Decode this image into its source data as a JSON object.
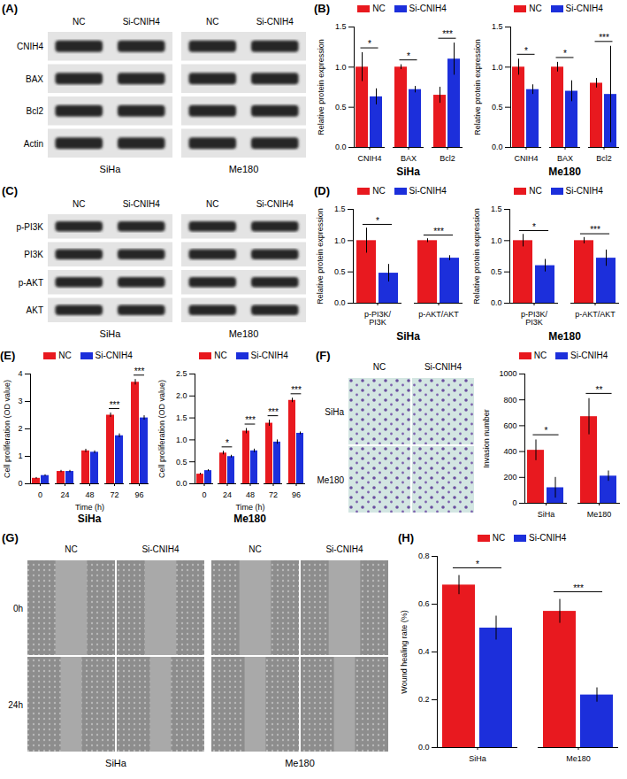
{
  "chart_data": [
    {
      "panel": "(B)",
      "type": "bar",
      "title": "SiHa",
      "ylabel": "Relative protein expression",
      "categories": [
        "CNIH4",
        "BAX",
        "Bcl2"
      ],
      "series": [
        {
          "name": "NC",
          "color": "#e8191f",
          "values": [
            1.0,
            1.0,
            0.65
          ],
          "errors": [
            0.18,
            0.03,
            0.1
          ]
        },
        {
          "name": "Si-CNIH4",
          "color": "#1c2fdb",
          "values": [
            0.63,
            0.72,
            1.1
          ],
          "errors": [
            0.1,
            0.04,
            0.2
          ]
        }
      ],
      "annotations": [
        "*",
        "*",
        "***"
      ],
      "ylim": [
        0,
        1.5
      ],
      "yticks": [
        {
          "value": 0,
          "label": "0.0"
        },
        {
          "value": 0.5,
          "label": "0.5"
        },
        {
          "value": 1,
          "label": "1.0"
        },
        {
          "value": 1.5,
          "label": "1.5"
        }
      ],
      "legend": "top"
    },
    {
      "type": "bar",
      "title": "Me180",
      "ylabel": "Relative protein expression",
      "categories": [
        "CNIH4",
        "BAX",
        "Bcl2"
      ],
      "series": [
        {
          "name": "NC",
          "color": "#e8191f",
          "values": [
            1.0,
            1.0,
            0.8
          ],
          "errors": [
            0.1,
            0.06,
            0.06
          ]
        },
        {
          "name": "Si-CNIH4",
          "color": "#1c2fdb",
          "values": [
            0.72,
            0.7,
            0.66
          ],
          "errors": [
            0.06,
            0.13,
            0.6
          ]
        }
      ],
      "annotations": [
        "*",
        "*",
        "***"
      ],
      "ylim": [
        0,
        1.5
      ],
      "yticks": [
        {
          "value": 0,
          "label": "0.0"
        },
        {
          "value": 0.5,
          "label": "0.5"
        },
        {
          "value": 1,
          "label": "1.0"
        },
        {
          "value": 1.5,
          "label": "1.5"
        }
      ],
      "legend": "top"
    },
    {
      "panel": "(D)",
      "type": "bar",
      "title": "SiHa",
      "ylabel": "Relative protein expression",
      "categories": [
        "p-PI3K/PI3K",
        "p-AKT/AKT"
      ],
      "series": [
        {
          "name": "NC",
          "color": "#e8191f",
          "values": [
            1.0,
            1.0
          ],
          "errors": [
            0.2,
            0.03
          ]
        },
        {
          "name": "Si-CNIH4",
          "color": "#1c2fdb",
          "values": [
            0.48,
            0.72
          ],
          "errors": [
            0.14,
            0.04
          ]
        }
      ],
      "annotations": [
        "*",
        "***"
      ],
      "ylim": [
        0,
        1.5
      ],
      "yticks": [
        {
          "value": 0,
          "label": "0.0"
        },
        {
          "value": 0.5,
          "label": "0.5"
        },
        {
          "value": 1,
          "label": "1.0"
        },
        {
          "value": 1.5,
          "label": "1.5"
        }
      ],
      "legend": "top"
    },
    {
      "type": "bar",
      "title": "Me180",
      "ylabel": "Relative protein expression",
      "categories": [
        "p-PI3K/PI3K",
        "p-AKT/AKT"
      ],
      "series": [
        {
          "name": "NC",
          "color": "#e8191f",
          "values": [
            1.0,
            1.0
          ],
          "errors": [
            0.1,
            0.05
          ]
        },
        {
          "name": "Si-CNIH4",
          "color": "#1c2fdb",
          "values": [
            0.6,
            0.72
          ],
          "errors": [
            0.1,
            0.13
          ]
        }
      ],
      "annotations": [
        "*",
        "***"
      ],
      "ylim": [
        0,
        1.5
      ],
      "yticks": [
        {
          "value": 0,
          "label": "0.0"
        },
        {
          "value": 0.5,
          "label": "0.5"
        },
        {
          "value": 1,
          "label": "1.0"
        },
        {
          "value": 1.5,
          "label": "1.5"
        }
      ],
      "legend": "top"
    },
    {
      "panel": "(E)",
      "type": "bar",
      "title": "SiHa",
      "ylabel": "Cell proliferation (OD value)",
      "xlabel": "Time (h)",
      "categories": [
        "0",
        "24",
        "48",
        "72",
        "96"
      ],
      "series": [
        {
          "name": "NC",
          "color": "#e8191f",
          "values": [
            0.2,
            0.45,
            1.2,
            2.5,
            3.7
          ],
          "errors": [
            0.03,
            0.04,
            0.06,
            0.08,
            0.1
          ]
        },
        {
          "name": "Si-CNIH4",
          "color": "#1c2fdb",
          "values": [
            0.3,
            0.45,
            1.15,
            1.75,
            2.4
          ],
          "errors": [
            0.03,
            0.04,
            0.05,
            0.07,
            0.08
          ]
        }
      ],
      "annotations": [
        null,
        null,
        null,
        "***",
        "***"
      ],
      "ylim": [
        0,
        4
      ],
      "yticks": [
        0,
        1,
        2,
        3,
        4
      ],
      "legend": "top"
    },
    {
      "type": "bar",
      "title": "Me180",
      "ylabel": "Cell proliferation (OD value)",
      "xlabel": "Time (h)",
      "categories": [
        "0",
        "24",
        "48",
        "72",
        "96"
      ],
      "series": [
        {
          "name": "NC",
          "color": "#e8191f",
          "values": [
            0.22,
            0.7,
            1.2,
            1.38,
            1.9
          ],
          "errors": [
            0.02,
            0.04,
            0.06,
            0.07,
            0.05
          ]
        },
        {
          "name": "Si-CNIH4",
          "color": "#1c2fdb",
          "values": [
            0.3,
            0.62,
            0.75,
            0.95,
            1.15
          ],
          "errors": [
            0.02,
            0.03,
            0.04,
            0.05,
            0.03
          ]
        }
      ],
      "annotations": [
        null,
        "*",
        "***",
        "***",
        "***"
      ],
      "ylim": [
        0,
        2.5
      ],
      "yticks": [
        {
          "value": 0,
          "label": "0.0"
        },
        {
          "value": 0.5,
          "label": "0.5"
        },
        {
          "value": 1,
          "label": "1.0"
        },
        {
          "value": 1.5,
          "label": "1.5"
        },
        {
          "value": 2,
          "label": "2.0"
        },
        {
          "value": 2.5,
          "label": "2.5"
        }
      ],
      "legend": "top"
    },
    {
      "type": "bar",
      "ylabel": "Invasion number",
      "categories": [
        "SiHa",
        "Me180"
      ],
      "series": [
        {
          "name": "NC",
          "color": "#e8191f",
          "values": [
            410,
            670
          ],
          "errors": [
            80,
            140
          ]
        },
        {
          "name": "Si-CNIH4",
          "color": "#1c2fdb",
          "values": [
            120,
            210
          ],
          "errors": [
            80,
            40
          ]
        }
      ],
      "annotations": [
        "*",
        "**"
      ],
      "ylim": [
        0,
        1000
      ],
      "yticks": [
        0,
        200,
        400,
        600,
        800,
        1000
      ],
      "legend": "top"
    },
    {
      "panel": "(H)",
      "type": "bar",
      "ylabel": "Wound healing rate (%)",
      "categories": [
        "SiHa",
        "Me180"
      ],
      "series": [
        {
          "name": "NC",
          "color": "#e8191f",
          "values": [
            0.68,
            0.57
          ],
          "errors": [
            0.04,
            0.05
          ]
        },
        {
          "name": "Si-CNIH4",
          "color": "#1c2fdb",
          "values": [
            0.5,
            0.22
          ],
          "errors": [
            0.05,
            0.03
          ]
        }
      ],
      "annotations": [
        "*",
        "***"
      ],
      "ylim": [
        0,
        0.8
      ],
      "yticks": [
        {
          "value": 0,
          "label": "0.0"
        },
        {
          "value": 0.2,
          "label": "0.2"
        },
        {
          "value": 0.4,
          "label": "0.4"
        },
        {
          "value": 0.6,
          "label": "0.6"
        },
        {
          "value": 0.8,
          "label": "0.8"
        }
      ],
      "legend": "top"
    }
  ],
  "blots": [
    {
      "panel": "(A)",
      "groups": [
        "SiHa",
        "Me180"
      ],
      "lanes": [
        "NC",
        "Si-CNIH4"
      ],
      "rows": [
        "CNIH4",
        "BAX",
        "Bcl2",
        "Actin"
      ]
    },
    {
      "panel": "(C)",
      "groups": [
        "SiHa",
        "Me180"
      ],
      "lanes": [
        "NC",
        "Si-CNIH4"
      ],
      "rows": [
        "p-PI3K",
        "PI3K",
        "p-AKT",
        "AKT"
      ]
    }
  ],
  "images": [
    {
      "panel": "(F)",
      "columns": [
        "NC",
        "Si-CNIH4"
      ],
      "rows": [
        "SiHa",
        "Me180"
      ]
    },
    {
      "panel": "(G)",
      "groups": [
        "SiHa",
        "Me180"
      ],
      "columns": [
        "NC",
        "Si-CNIH4"
      ],
      "rows": [
        "0h",
        "24h"
      ]
    }
  ]
}
